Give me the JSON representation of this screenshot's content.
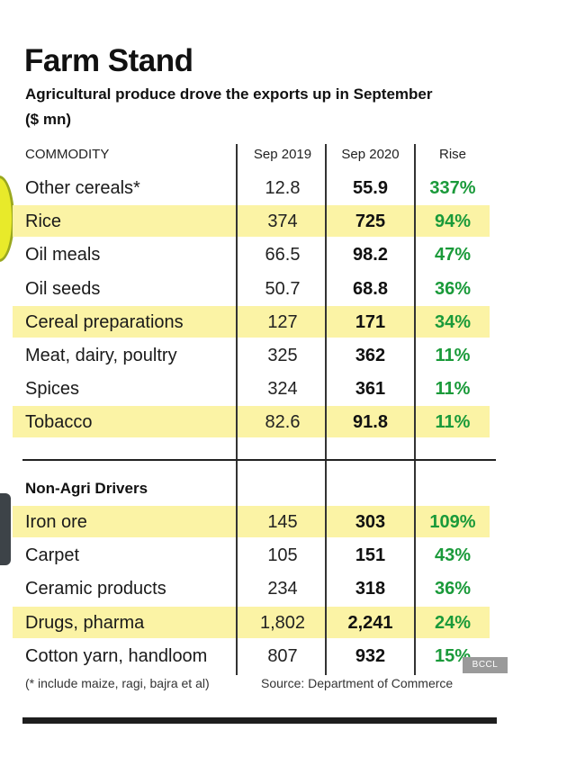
{
  "title": "Farm Stand",
  "subtitle": "Agricultural produce drove the exports up in September",
  "unit": "($ mn)",
  "headers": {
    "commodity": "COMMODITY",
    "sep2019": "Sep 2019",
    "sep2020": "Sep 2020",
    "rise": "Rise"
  },
  "colors": {
    "highlight": "#fbf3a5",
    "rise_text": "#1a9a3a",
    "rule": "#222222"
  },
  "chart_data": {
    "type": "table",
    "title": "Farm Stand",
    "subtitle": "Agricultural produce drove the exports up in September",
    "unit": "$ mn",
    "columns": [
      "COMMODITY",
      "Sep 2019",
      "Sep 2020",
      "Rise"
    ],
    "sections": [
      {
        "name": "",
        "rows": [
          {
            "commodity": "Other cereals*",
            "sep2019": "12.8",
            "sep2020": "55.9",
            "rise": "337%",
            "highlight": false
          },
          {
            "commodity": "Rice",
            "sep2019": "374",
            "sep2020": "725",
            "rise": "94%",
            "highlight": true
          },
          {
            "commodity": "Oil meals",
            "sep2019": "66.5",
            "sep2020": "98.2",
            "rise": "47%",
            "highlight": false
          },
          {
            "commodity": "Oil seeds",
            "sep2019": "50.7",
            "sep2020": "68.8",
            "rise": "36%",
            "highlight": false
          },
          {
            "commodity": "Cereal preparations",
            "sep2019": "127",
            "sep2020": "171",
            "rise": "34%",
            "highlight": true
          },
          {
            "commodity": "Meat, dairy, poultry",
            "sep2019": "325",
            "sep2020": "362",
            "rise": "11%",
            "highlight": false
          },
          {
            "commodity": "Spices",
            "sep2019": "324",
            "sep2020": "361",
            "rise": "11%",
            "highlight": false
          },
          {
            "commodity": "Tobacco",
            "sep2019": "82.6",
            "sep2020": "91.8",
            "rise": "11%",
            "highlight": true
          }
        ]
      },
      {
        "name": "Non-Agri Drivers",
        "rows": [
          {
            "commodity": "Iron ore",
            "sep2019": "145",
            "sep2020": "303",
            "rise": "109%",
            "highlight": true
          },
          {
            "commodity": "Carpet",
            "sep2019": "105",
            "sep2020": "151",
            "rise": "43%",
            "highlight": false
          },
          {
            "commodity": "Ceramic products",
            "sep2019": "234",
            "sep2020": "318",
            "rise": "36%",
            "highlight": false
          },
          {
            "commodity": "Drugs, pharma",
            "sep2019": "1,802",
            "sep2020": "2,241",
            "rise": "24%",
            "highlight": true
          },
          {
            "commodity": "Cotton yarn, handloom",
            "sep2019": "807",
            "sep2020": "932",
            "rise": "15%",
            "highlight": false
          }
        ]
      }
    ]
  },
  "footnote": "(* include maize, ragi, bajra et al)",
  "source": "Source: Department of Commerce",
  "watermark": "BCCL"
}
